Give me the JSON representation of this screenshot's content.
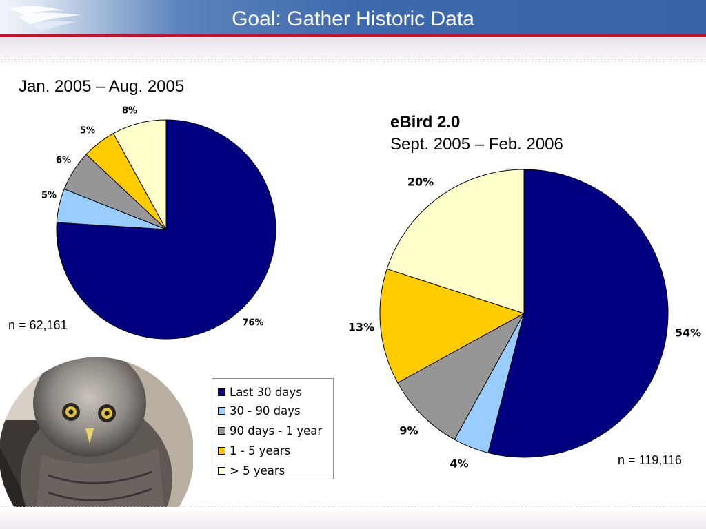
{
  "slide": {
    "title": "Goal: Gather Historic Data"
  },
  "chart_data": [
    {
      "type": "pie",
      "title": "Jan. 2005 – Aug. 2005",
      "n_label": "n = 62,161",
      "categories": [
        "Last 30 days",
        "30 - 90 days",
        "90 days - 1 year",
        "1 - 5 years",
        "> 5 years"
      ],
      "values": [
        76,
        5,
        6,
        5,
        8
      ],
      "value_labels": [
        "76%",
        "5%",
        "6%",
        "5%",
        "8%"
      ],
      "colors": [
        "#000080",
        "#99ccff",
        "#969696",
        "#ffcc00",
        "#ffffcc"
      ]
    },
    {
      "type": "pie",
      "title": "eBird 2.0",
      "subtitle": "Sept. 2005 – Feb. 2006",
      "n_label": "n = 119,116",
      "categories": [
        "Last 30 days",
        "30 - 90 days",
        "90 days - 1 year",
        "1 - 5 years",
        "> 5 years"
      ],
      "values": [
        54,
        4,
        9,
        13,
        20
      ],
      "value_labels": [
        "54%",
        "4%",
        "9%",
        "13%",
        "20%"
      ],
      "colors": [
        "#000080",
        "#99ccff",
        "#969696",
        "#ffcc00",
        "#ffffcc"
      ]
    }
  ],
  "legend": {
    "items": [
      {
        "label": "Last 30 days",
        "color": "#000080"
      },
      {
        "label": "30 - 90 days",
        "color": "#99ccff"
      },
      {
        "label": "90 days - 1 year",
        "color": "#969696"
      },
      {
        "label": "1 - 5 years",
        "color": "#ffcc00"
      },
      {
        "label": "> 5 years",
        "color": "#ffffcc"
      }
    ]
  },
  "images": {
    "logo": "bird-swoosh-logo",
    "photo": "great-gray-owl-photo"
  }
}
